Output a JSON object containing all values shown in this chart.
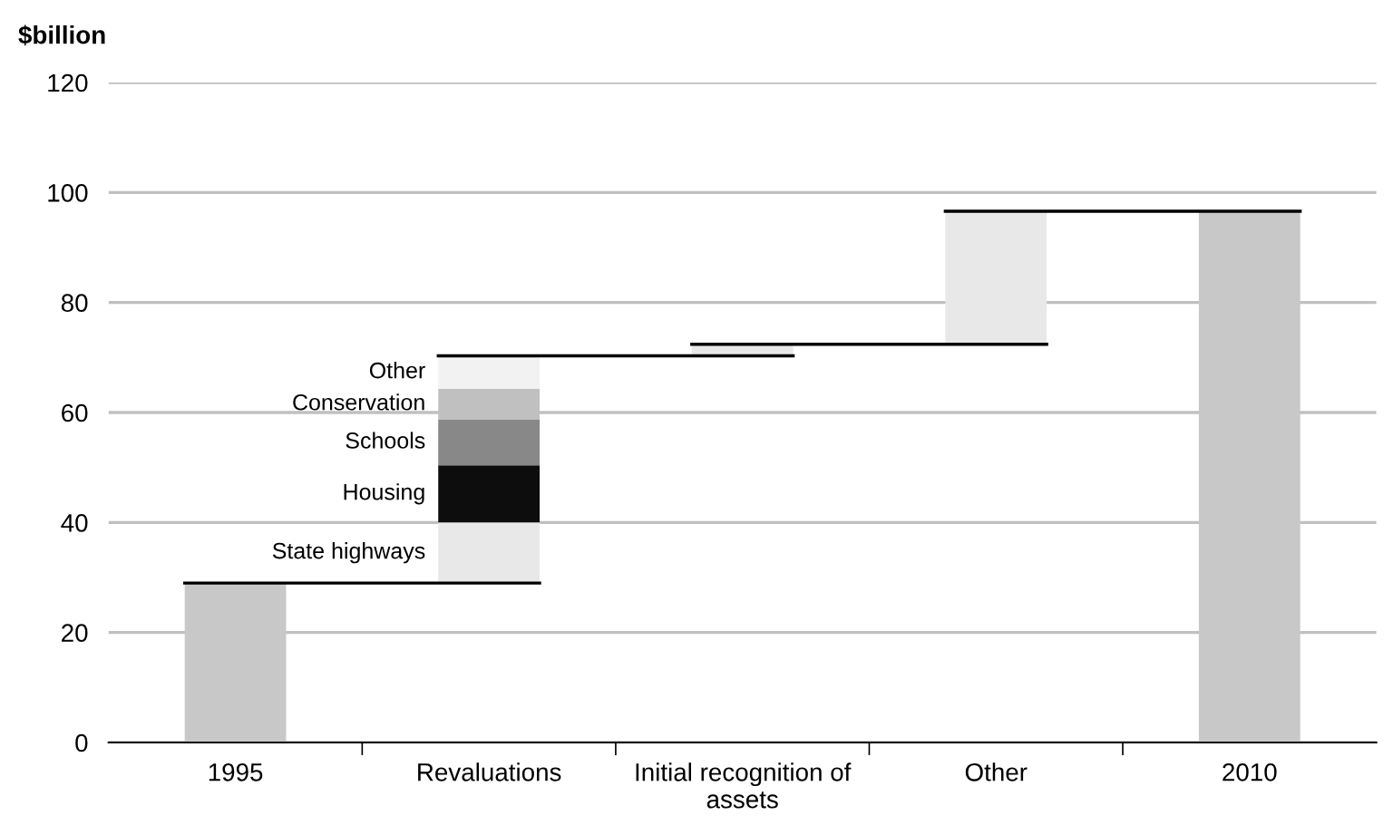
{
  "chart_data": {
    "type": "bar",
    "ylabel": "$billion",
    "categories": [
      "1995",
      "Revaluations",
      "Initial recognition of\nassets",
      "Other",
      "2010"
    ],
    "series": [
      {
        "colors": [
          "#c8c8c8",
          null,
          "#e8e8e8",
          "#e8e8e8",
          "#c8c8c8"
        ],
        "values": [
          29,
          null,
          2.1,
          24.2,
          96.6
        ],
        "base": [
          0,
          null,
          70.3,
          72.4,
          0
        ]
      },
      {
        "name": "State highways",
        "color": "#e8e8e8",
        "values": [
          null,
          11,
          null,
          null,
          null
        ],
        "base": [
          null,
          29,
          null,
          null,
          null
        ]
      },
      {
        "name": "Housing",
        "color": "#0d0d0d",
        "values": [
          null,
          10.4,
          null,
          null,
          null
        ],
        "base": [
          null,
          40,
          null,
          null,
          null
        ]
      },
      {
        "name": "Schools",
        "color": "#888888",
        "values": [
          null,
          8.3,
          null,
          null,
          null
        ],
        "base": [
          null,
          50.4,
          null,
          null,
          null
        ]
      },
      {
        "name": "Conservation",
        "color": "#c0c0c0",
        "values": [
          null,
          5.6,
          null,
          null,
          null
        ],
        "base": [
          null,
          58.7,
          null,
          null,
          null
        ]
      },
      {
        "name": "Other",
        "color": "#f2f2f2",
        "values": [
          null,
          6.0,
          null,
          null,
          null
        ],
        "base": [
          null,
          64.3,
          null,
          null,
          null
        ]
      }
    ],
    "ylim": [
      0,
      120
    ],
    "yticks": [
      0,
      20,
      40,
      60,
      80,
      100,
      120
    ],
    "grid": "y",
    "legend": false
  }
}
